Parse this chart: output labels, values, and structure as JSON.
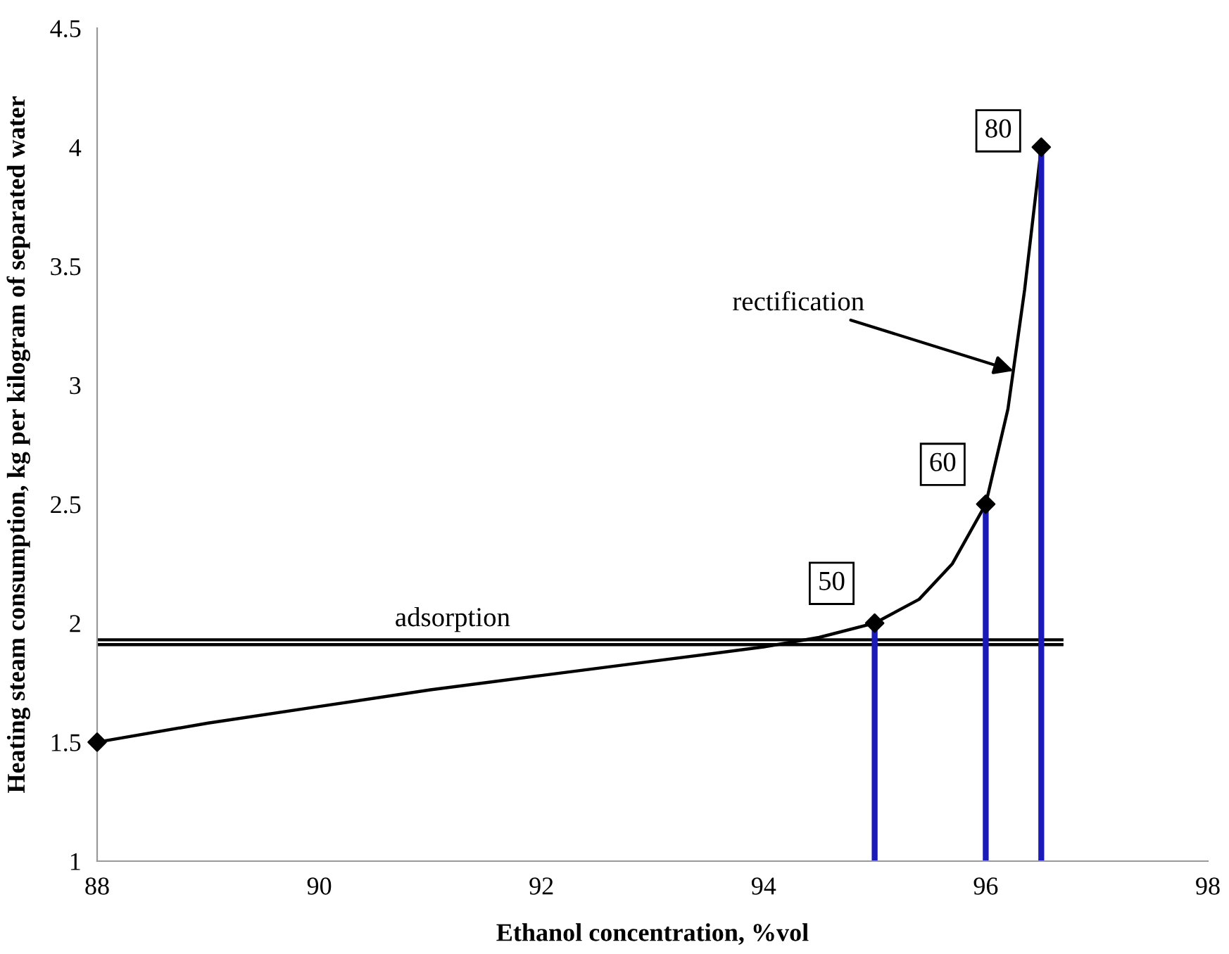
{
  "chart_data": {
    "type": "line",
    "xlabel": "Ethanol concentration, %vol",
    "ylabel": "Heating steam consumption, kg per kilogram of separated water",
    "xlim": [
      88,
      98
    ],
    "xticks": [
      88,
      90,
      92,
      94,
      96,
      98
    ],
    "ylim": [
      1,
      4.5
    ],
    "yticks": [
      1,
      1.5,
      2,
      2.5,
      3,
      3.5,
      4,
      4.5
    ],
    "grid": false,
    "legend": false,
    "series": [
      {
        "color": "#000000",
        "marker": "none",
        "x": [
          88,
          89,
          90,
          91,
          92,
          93,
          94,
          94.5,
          95,
          95.4,
          95.7,
          96,
          96.2,
          96.35,
          96.5
        ],
        "values": [
          1.5,
          1.58,
          1.65,
          1.72,
          1.78,
          1.84,
          1.9,
          1.94,
          2.0,
          2.1,
          2.25,
          2.5,
          2.9,
          3.4,
          4.0
        ]
      },
      {
        "color": "#000000",
        "marker": "none",
        "x": [
          88,
          96.7
        ],
        "values": [
          1.91,
          1.91
        ]
      },
      {
        "color": "#000000",
        "marker": "none",
        "x": [
          88,
          96.7
        ],
        "values": [
          1.93,
          1.93
        ]
      },
      {
        "color": "#1a1ab8",
        "marker": "none",
        "x": [
          95,
          95
        ],
        "values": [
          1,
          2.0
        ]
      },
      {
        "color": "#1a1ab8",
        "marker": "none",
        "x": [
          96,
          96
        ],
        "values": [
          1,
          2.5
        ]
      },
      {
        "color": "#1a1ab8",
        "marker": "none",
        "x": [
          96.5,
          96.5
        ],
        "values": [
          1,
          4.0
        ]
      },
      {
        "type": "scatter",
        "color": "#000000",
        "marker": "diamond",
        "x": [
          88,
          95,
          96,
          96.5
        ],
        "values": [
          1.5,
          2.0,
          2.5,
          4.0
        ]
      }
    ],
    "annotations": [
      {
        "text": "50",
        "x": 95,
        "y": 2.0
      },
      {
        "text": "60",
        "x": 96,
        "y": 2.5
      },
      {
        "text": "80",
        "x": 96.5,
        "y": 4.0
      },
      {
        "text": "rectification",
        "x": 96.25,
        "y": 3.06
      },
      {
        "text": "adsorption",
        "x": 91.2,
        "y": 1.93
      }
    ]
  }
}
